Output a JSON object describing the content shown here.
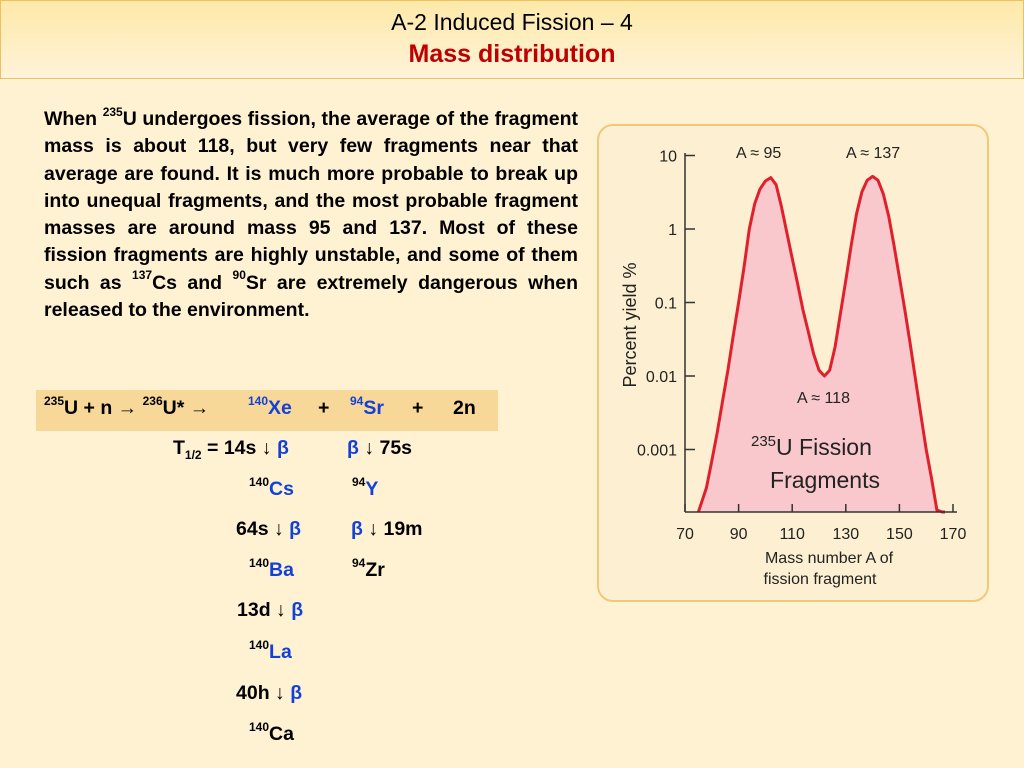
{
  "header": {
    "title": "A-2 Induced Fission – 4",
    "subtitle": "Mass distribution"
  },
  "paragraph": {
    "w1": "When ",
    "sup1": "235",
    "w2": "U undergoes fission, the average of the fragment mass is about 118, but very few fragments near that average are found. It is much more probable to break up into unequal fragments, and the most probable fragment masses are around mass 95 and 137. Most of these fission fragments are highly unstable, and some of them such as ",
    "sup2": "137",
    "w3": "Cs and ",
    "sup3": "90",
    "w4": "Sr are extremely dangerous when released to the environment."
  },
  "reaction": {
    "u235_sup": "235",
    "u235": "U + n → ",
    "u236_sup": "236",
    "u236": "U* → ",
    "xe_sup": "140",
    "xe": "Xe",
    "plus1": "+",
    "sr_sup": "94",
    "sr": "Sr",
    "plus2": "+",
    "neutrons": "2n"
  },
  "decay": {
    "half_label": "T",
    "half_sub": "1/2",
    "half_eq": " = 14s ↓ ",
    "beta": "β",
    "arrow_right": " ↓ 75s",
    "cs_sup": "140",
    "cs": "Cs",
    "y_sup": "94",
    "y": "Y",
    "t_cs": "64s ↓ ",
    "t_y": " ↓ 19m",
    "ba_sup": "140",
    "ba": "Ba",
    "zr_sup": "94",
    "zr": "Zr",
    "t_ba": "13d ↓ ",
    "la_sup": "140",
    "la": "La",
    "t_la": "40h ↓ ",
    "ca_sup": "140",
    "ca": "Ca"
  },
  "chart_data": {
    "type": "area",
    "title_sup": "235",
    "title_line1": "U Fission",
    "title_line2": "Fragments",
    "ylabel": "Percent yield %",
    "xlabel_line1": "Mass number A of",
    "xlabel_line2": "fission fragment",
    "y_scale": "log",
    "ylim": [
      0.0001,
      15
    ],
    "xlim": [
      70,
      170
    ],
    "x_ticks": [
      "70",
      "90",
      "110",
      "130",
      "150",
      "170"
    ],
    "y_ticks": [
      "10",
      "1",
      "0.1",
      "0.01",
      "0.001"
    ],
    "annotations": [
      "A ≈ 95",
      "A ≈ 137",
      "A ≈ 118"
    ],
    "fill_color": "#f8c8cc",
    "line_color": "#e0202c",
    "x": [
      75,
      78,
      80,
      82,
      84,
      86,
      88,
      90,
      92,
      94,
      96,
      98,
      100,
      102,
      104,
      106,
      108,
      110,
      112,
      114,
      116,
      118,
      120,
      122,
      124,
      126,
      128,
      130,
      132,
      134,
      136,
      138,
      140,
      142,
      144,
      146,
      148,
      150,
      152,
      154,
      156,
      158,
      160,
      162,
      164,
      166,
      167
    ],
    "y": [
      0.0001,
      0.0003,
      0.0007,
      0.0017,
      0.0045,
      0.012,
      0.035,
      0.1,
      0.3,
      1.0,
      2.2,
      3.5,
      4.5,
      5.0,
      4.0,
      2.0,
      0.9,
      0.4,
      0.18,
      0.08,
      0.04,
      0.02,
      0.012,
      0.01,
      0.012,
      0.025,
      0.07,
      0.2,
      0.6,
      1.6,
      3.2,
      4.6,
      5.2,
      4.6,
      3.0,
      1.5,
      0.6,
      0.22,
      0.08,
      0.028,
      0.009,
      0.003,
      0.001,
      0.0004,
      0.00015,
      0.0001,
      0.0001
    ]
  }
}
